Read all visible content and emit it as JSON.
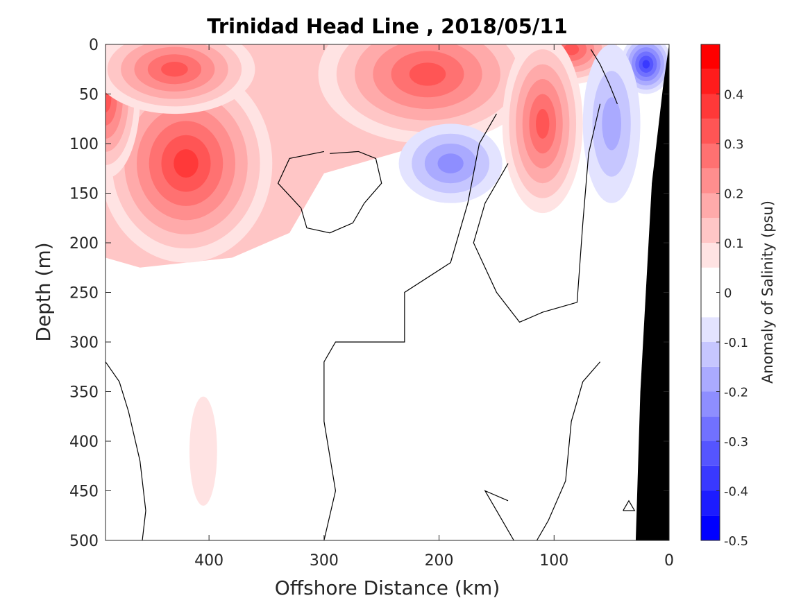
{
  "chart_data": {
    "type": "heatmap",
    "subtype": "filled-contour",
    "title": "Trinidad Head Line , 2018/05/11",
    "xlabel": "Offshore Distance (km)",
    "ylabel": "Depth (m)",
    "colorbar_label": "Anomaly of Salinity (psu)",
    "xlim": [
      490,
      0
    ],
    "ylim": [
      0,
      500
    ],
    "y_reversed": true,
    "x_reversed": true,
    "xticks": [
      400,
      300,
      200,
      100,
      0
    ],
    "yticks": [
      0,
      50,
      100,
      150,
      200,
      250,
      300,
      350,
      400,
      450,
      500
    ],
    "cbar_range": [
      -0.5,
      0.5
    ],
    "cbar_ticks": [
      0.4,
      0.3,
      0.2,
      0.1,
      0,
      -0.1,
      -0.2,
      -0.3,
      -0.4,
      -0.5
    ],
    "cbar_step": 0.05,
    "colors": {
      "positive_max": "#ff0000",
      "negative_max": "#0000ff",
      "zero": "#ffffff",
      "bathymetry": "#000000"
    },
    "features": [
      {
        "sign": "positive",
        "peak": 0.35,
        "x": 420,
        "depth": 120
      },
      {
        "sign": "positive",
        "peak": 0.3,
        "x": 490,
        "depth": 55
      },
      {
        "sign": "positive",
        "peak": 0.3,
        "x": 430,
        "depth": 25
      },
      {
        "sign": "positive",
        "peak": 0.3,
        "x": 210,
        "depth": 30
      },
      {
        "sign": "positive",
        "peak": 0.3,
        "x": 85,
        "depth": 5
      },
      {
        "sign": "positive",
        "peak": 0.3,
        "x": 110,
        "depth": 80
      },
      {
        "sign": "positive",
        "peak": 0.05,
        "x": 405,
        "depth": 410
      },
      {
        "sign": "negative",
        "peak": -0.2,
        "x": 190,
        "depth": 120
      },
      {
        "sign": "negative",
        "peak": -0.35,
        "x": 20,
        "depth": 20
      },
      {
        "sign": "negative",
        "peak": -0.15,
        "x": 50,
        "depth": 80
      }
    ]
  }
}
